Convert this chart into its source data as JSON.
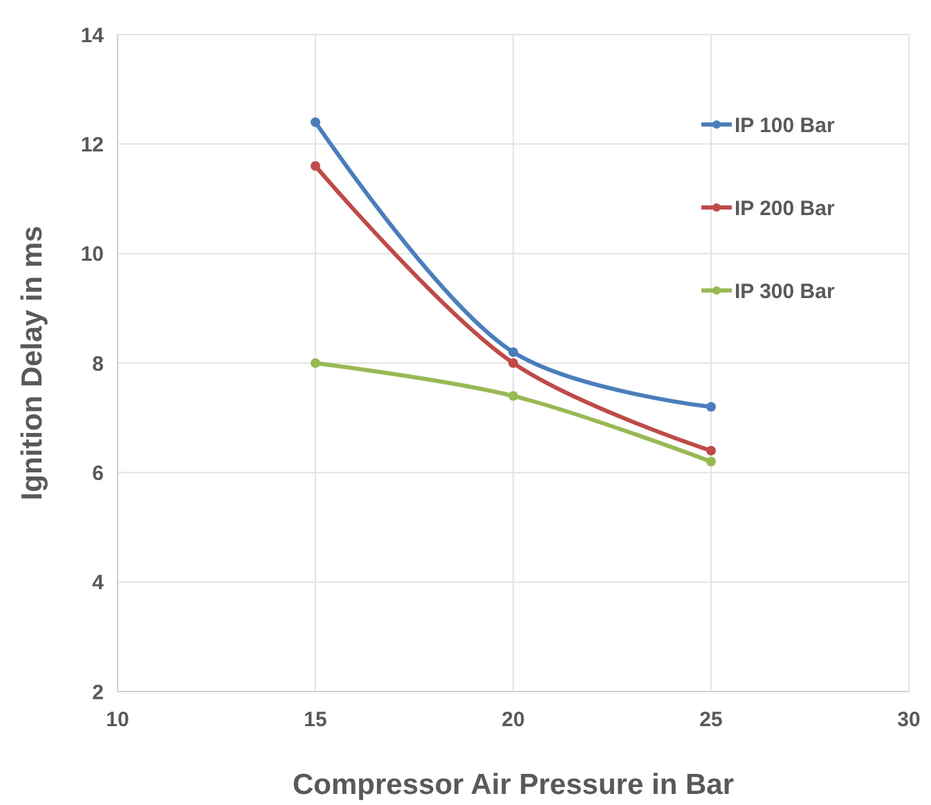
{
  "chart_data": {
    "type": "line",
    "xlabel": "Compressor Air Pressure in Bar",
    "ylabel": "Ignition Delay in ms",
    "x": [
      15,
      20,
      25
    ],
    "series": [
      {
        "name": "IP 100 Bar",
        "color": "#4a7ebb",
        "values": [
          12.4,
          8.2,
          7.2
        ]
      },
      {
        "name": "IP 200 Bar",
        "color": "#be4b48",
        "values": [
          11.6,
          8.0,
          6.4
        ]
      },
      {
        "name": "IP 300 Bar",
        "color": "#98b954",
        "values": [
          8.0,
          7.4,
          6.2
        ]
      }
    ],
    "xlim": [
      10,
      30
    ],
    "xticks": [
      10,
      15,
      20,
      25,
      30
    ],
    "ylim": [
      2,
      14
    ],
    "yticks": [
      2,
      4,
      6,
      8,
      10,
      12,
      14
    ],
    "grid": true,
    "legend": "top right",
    "marker": "circle",
    "line_style": "solid"
  }
}
